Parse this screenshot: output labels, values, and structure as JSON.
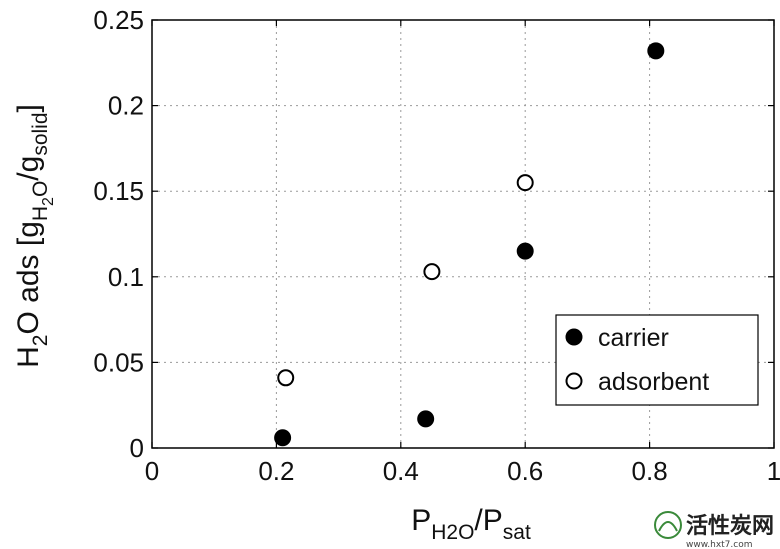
{
  "chart_data": {
    "type": "scatter",
    "xlim": [
      0,
      1
    ],
    "ylim": [
      0,
      0.25
    ],
    "x_ticks": [
      "0",
      "0.2",
      "0.4",
      "0.6",
      "0.8",
      "1"
    ],
    "y_ticks": [
      "0",
      "0.05",
      "0.1",
      "0.15",
      "0.2",
      "0.25"
    ],
    "xlabel": {
      "parts": [
        {
          "text": "P",
          "sub": false
        },
        {
          "text": "H2O",
          "sub": true
        },
        {
          "text": "/P",
          "sub": false
        },
        {
          "text": "sat",
          "sub": true
        }
      ]
    },
    "ylabel": {
      "parts": [
        {
          "text": "H",
          "sub": false
        },
        {
          "text": "2",
          "sub": true
        },
        {
          "text": "O ads [g",
          "sub": false
        },
        {
          "text": "H",
          "sub": true
        },
        {
          "text": "2",
          "sub": "subsub"
        },
        {
          "text": "O",
          "sub": true
        },
        {
          "text": "/g",
          "sub": false
        },
        {
          "text": "solid",
          "sub": true
        },
        {
          "text": "]",
          "sub": false
        }
      ]
    },
    "grid": true,
    "legend_position": "lower-right",
    "series": [
      {
        "name": "carrier",
        "marker": "filled-circle",
        "color": "#000000",
        "points": [
          {
            "x": 0.21,
            "y": 0.006
          },
          {
            "x": 0.44,
            "y": 0.017
          },
          {
            "x": 0.6,
            "y": 0.115
          },
          {
            "x": 0.81,
            "y": 0.232
          }
        ]
      },
      {
        "name": "adsorbent",
        "marker": "open-circle",
        "color": "#000000",
        "points": [
          {
            "x": 0.215,
            "y": 0.041
          },
          {
            "x": 0.45,
            "y": 0.103
          },
          {
            "x": 0.6,
            "y": 0.155
          }
        ]
      }
    ]
  },
  "watermark": {
    "name": "活性炭网",
    "url": "www.hxt7.com"
  }
}
